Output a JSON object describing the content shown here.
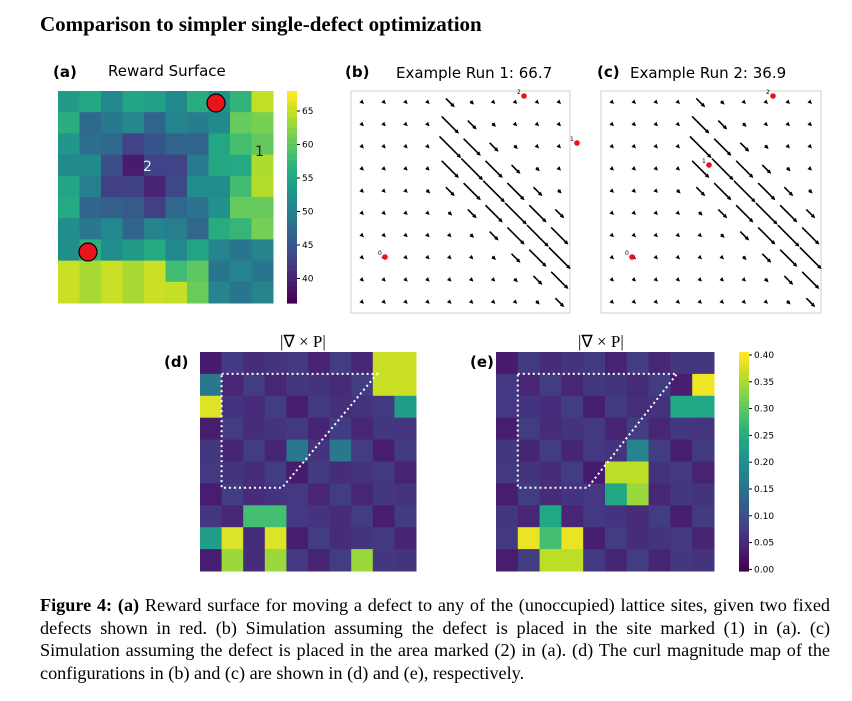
{
  "heading": "Comparison to simpler single-defect optimization",
  "panels": {
    "a": {
      "letter": "(a)",
      "title": "Reward Surface",
      "marker1": "1",
      "marker2": "2",
      "colorbar_ticks": [
        "65",
        "60",
        "55",
        "50",
        "45",
        "40"
      ]
    },
    "b": {
      "letter": "(b)",
      "title": "Example Run 1: 66.7",
      "defect_labels": [
        "0",
        "1",
        "2"
      ]
    },
    "c": {
      "letter": "(c)",
      "title": "Example Run 2: 36.9",
      "defect_labels": [
        "0",
        "1",
        "2"
      ]
    },
    "d": {
      "letter": "(d)",
      "title": "|∇ × P|"
    },
    "e": {
      "letter": "(e)",
      "title": "|∇ × P|",
      "colorbar_ticks": [
        "0.40",
        "0.35",
        "0.30",
        "0.25",
        "0.20",
        "0.15",
        "0.10",
        "0.05",
        "0.00"
      ]
    }
  },
  "colors": {
    "defect": "#e8131b",
    "arrow": "#000000"
  },
  "caption": {
    "label": "Figure 4:",
    "a_label": "(a)",
    "text": " Reward surface for moving a defect to any of the (unoccupied) lattice sites, given two fixed defects shown in red. (b) Simulation assuming the defect is placed in the site marked (1) in (a). (c) Simulation assuming the defect is placed in the area marked (2) in (a). (d) The curl magnitude map of the configurations in (b) and (c) are shown in (d) and (e), respectively."
  }
}
